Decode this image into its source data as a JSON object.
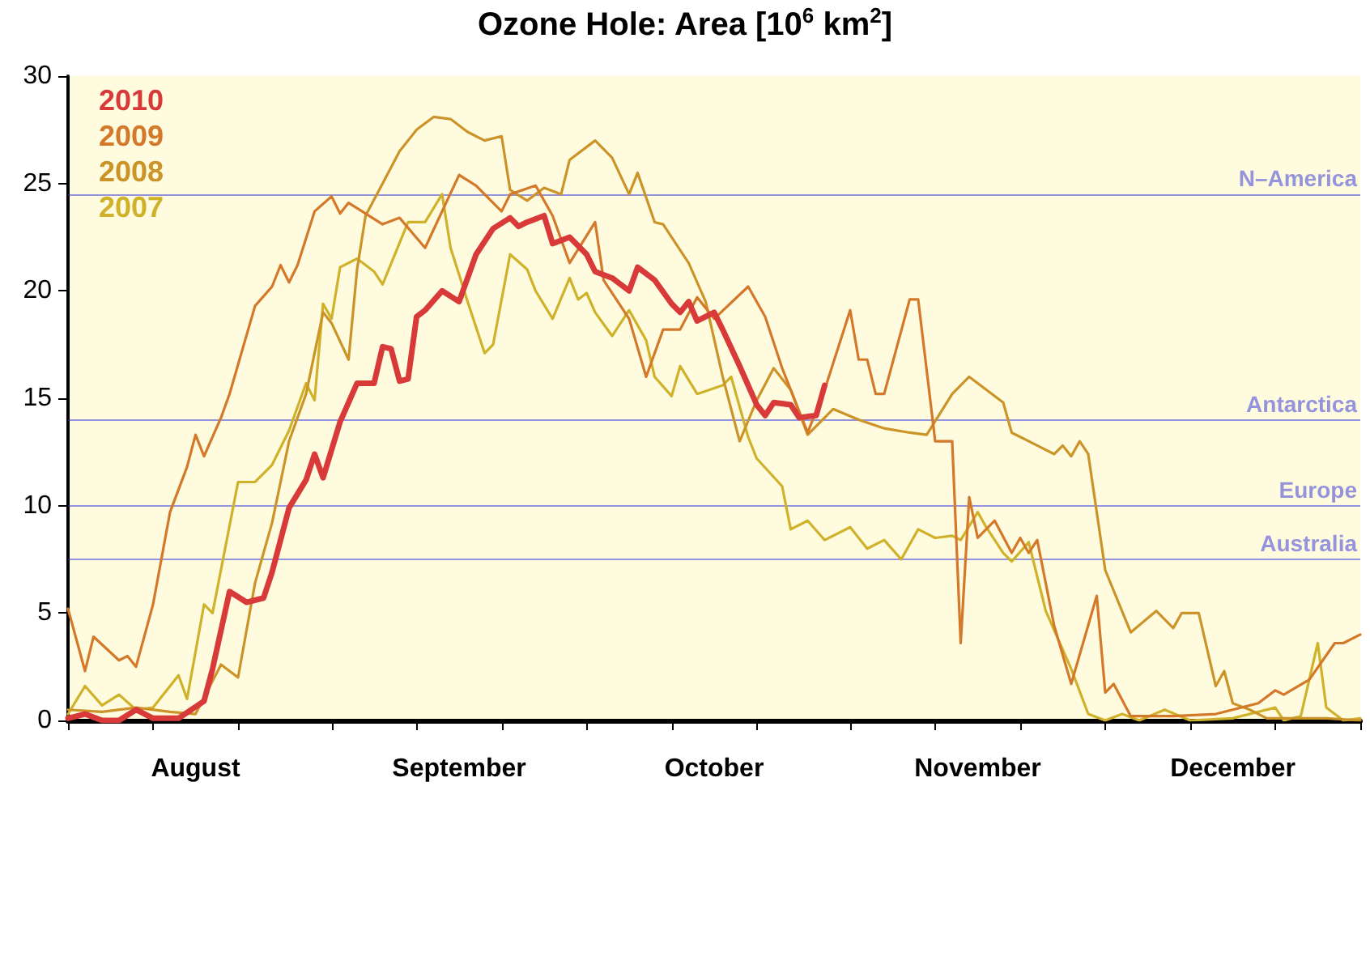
{
  "chart_data": {
    "type": "line",
    "title": "Ozone Hole: Area [10$^{6}$ km$^{2}$]",
    "xlim": [
      "--08-01",
      "--12-31"
    ],
    "xticks": [
      {
        "value": "--08-01",
        "label": null
      },
      {
        "value": "--08-11",
        "label": null
      },
      {
        "value": "--08-16",
        "label": "August"
      },
      {
        "value": "--08-21",
        "label": null
      },
      {
        "value": "--09-01",
        "label": null
      },
      {
        "value": "--09-11",
        "label": null
      },
      {
        "value": "--09-16",
        "label": "September"
      },
      {
        "value": "--09-21",
        "label": null
      },
      {
        "value": "--10-01",
        "label": null
      },
      {
        "value": "--10-11",
        "label": null
      },
      {
        "value": "--10-16",
        "label": "October"
      },
      {
        "value": "--10-21",
        "label": null
      },
      {
        "value": "--11-01",
        "label": null
      },
      {
        "value": "--11-11",
        "label": null
      },
      {
        "value": "--11-16",
        "label": "November"
      },
      {
        "value": "--11-21",
        "label": null
      },
      {
        "value": "--12-01",
        "label": null
      },
      {
        "value": "--12-11",
        "label": null
      },
      {
        "value": "--12-16",
        "label": "December"
      },
      {
        "value": "--12-21",
        "label": null
      },
      {
        "value": "--12-31",
        "label": null
      }
    ],
    "ylim": [
      0,
      30
    ],
    "yticks": [
      0,
      5,
      10,
      15,
      20,
      25,
      30
    ],
    "grid": false,
    "legend": "top left",
    "marker": "none",
    "line_style": "solid",
    "ref_lines": [
      {
        "axis": "y",
        "value": 24.5,
        "label": "N–America",
        "color": "#2b2bd9"
      },
      {
        "axis": "y",
        "value": 14,
        "label": "Antarctica",
        "color": "#2b2bd9"
      },
      {
        "axis": "y",
        "value": 10,
        "label": "Europe",
        "color": "#2b2bd9"
      },
      {
        "axis": "y",
        "value": 7.5,
        "label": "Australia",
        "color": "#2b2bd9"
      }
    ],
    "series": [
      {
        "name": "2010",
        "color": "#d83a3a",
        "x": [
          "--08-01",
          "--08-03",
          "--08-05",
          "--08-07",
          "--08-09",
          "--08-11",
          "--08-14",
          "--08-17",
          "--08-18",
          "--08-20",
          "--08-22",
          "--08-24",
          "--08-25",
          "--08-27",
          "--08-29",
          "--08-30",
          "--08-31",
          "--09-02",
          "--09-04",
          "--09-06",
          "--09-07",
          "--09-08",
          "--09-09",
          "--09-10",
          "--09-11",
          "--09-12",
          "--09-14",
          "--09-16",
          "--09-18",
          "--09-20",
          "--09-22",
          "--09-23",
          "--09-24",
          "--09-26",
          "--09-27",
          "--09-29",
          "--10-01",
          "--10-02",
          "--10-04",
          "--10-06",
          "--10-07",
          "--10-09",
          "--10-11",
          "--10-12",
          "--10-13",
          "--10-14",
          "--10-16",
          "--10-17",
          "--10-19",
          "--10-21",
          "--10-22",
          "--10-23",
          "--10-25",
          "--10-26",
          "--10-28",
          "--10-29"
        ],
        "values": [
          0.1,
          0.3,
          0,
          0,
          0.5,
          0.1,
          0.1,
          0.9,
          2.4,
          6.0,
          5.5,
          5.7,
          6.9,
          9.9,
          11.2,
          12.4,
          11.3,
          13.9,
          15.7,
          15.7,
          17.4,
          17.3,
          15.8,
          15.9,
          18.8,
          19.1,
          20.0,
          19.5,
          21.7,
          22.9,
          23.4,
          23.0,
          23.2,
          23.5,
          22.2,
          22.5,
          21.7,
          20.9,
          20.6,
          20.0,
          21.1,
          20.5,
          19.4,
          19.0,
          19.5,
          18.6,
          19.0,
          18.2,
          16.5,
          14.7,
          14.2,
          14.8,
          14.7,
          14.1,
          14.2,
          15.6
        ]
      },
      {
        "name": "2009",
        "color": "#d4782a",
        "x": [
          "--08-01",
          "--08-03",
          "--08-04",
          "--08-07",
          "--08-08",
          "--08-09",
          "--08-11",
          "--08-13",
          "--08-15",
          "--08-16",
          "--08-17",
          "--08-19",
          "--08-20",
          "--08-23",
          "--08-25",
          "--08-26",
          "--08-27",
          "--08-28",
          "--08-30",
          "--09-01",
          "--09-02",
          "--09-03",
          "--09-07",
          "--09-09",
          "--09-12",
          "--09-16",
          "--09-18",
          "--09-21",
          "--09-22",
          "--09-25",
          "--09-27",
          "--09-29",
          "--10-02",
          "--10-03",
          "--10-06",
          "--10-08",
          "--10-10",
          "--10-12",
          "--10-14",
          "--10-16",
          "--10-20",
          "--10-22",
          "--10-24",
          "--10-27",
          "--10-29",
          "--11-01",
          "--11-02",
          "--11-03",
          "--11-04",
          "--11-05",
          "--11-08",
          "--11-09",
          "--11-11",
          "--11-13",
          "--11-14",
          "--11-15",
          "--11-16",
          "--11-18",
          "--11-20",
          "--11-21",
          "--11-22",
          "--11-23",
          "--11-25",
          "--11-27",
          "--11-30",
          "--12-01",
          "--12-02",
          "--12-04",
          "--12-09",
          "--12-14",
          "--12-19",
          "--12-21",
          "--12-22",
          "--12-25",
          "--12-28",
          "--12-29",
          "--12-31"
        ],
        "values": [
          5.2,
          2.3,
          3.9,
          2.8,
          3.0,
          2.5,
          5.4,
          9.7,
          11.8,
          13.3,
          12.3,
          14.1,
          15.2,
          19.3,
          20.2,
          21.2,
          20.4,
          21.2,
          23.7,
          24.4,
          23.6,
          24.1,
          23.1,
          23.4,
          22.0,
          25.4,
          24.9,
          23.7,
          24.5,
          24.9,
          23.5,
          21.3,
          23.2,
          20.5,
          18.7,
          16.0,
          18.2,
          18.2,
          19.7,
          18.7,
          20.2,
          18.8,
          16.4,
          13.4,
          15.4,
          19.1,
          16.8,
          16.8,
          15.2,
          15.2,
          19.6,
          19.6,
          13.0,
          13.0,
          3.6,
          10.4,
          8.5,
          9.3,
          7.8,
          8.5,
          7.8,
          8.4,
          4.4,
          1.7,
          5.8,
          1.3,
          1.7,
          0.2,
          0.2,
          0.3,
          0.8,
          1.4,
          1.2,
          1.9,
          3.6,
          3.6,
          4.0
        ]
      },
      {
        "name": "2008",
        "color": "#cc9428",
        "x": [
          "--08-01",
          "--08-05",
          "--08-09",
          "--08-13",
          "--08-16",
          "--08-19",
          "--08-21",
          "--08-23",
          "--08-25",
          "--08-27",
          "--08-29",
          "--08-31",
          "--09-01",
          "--09-03",
          "--09-04",
          "--09-05",
          "--09-07",
          "--09-09",
          "--09-11",
          "--09-13",
          "--09-15",
          "--09-17",
          "--09-19",
          "--09-21",
          "--09-22",
          "--09-24",
          "--09-26",
          "--09-28",
          "--09-29",
          "--10-02",
          "--10-04",
          "--10-06",
          "--10-07",
          "--10-09",
          "--10-10",
          "--10-13",
          "--10-15",
          "--10-17",
          "--10-19",
          "--10-21",
          "--10-23",
          "--10-25",
          "--10-27",
          "--10-30",
          "--11-02",
          "--11-05",
          "--11-08",
          "--11-10",
          "--11-13",
          "--11-15",
          "--11-19",
          "--11-20",
          "--11-23",
          "--11-25",
          "--11-26",
          "--11-27",
          "--11-28",
          "--11-29",
          "--12-01",
          "--12-04",
          "--12-07",
          "--12-09",
          "--12-10",
          "--12-12",
          "--12-14",
          "--12-15",
          "--12-16",
          "--12-18",
          "--12-20",
          "--12-24",
          "--12-27",
          "--12-31"
        ],
        "values": [
          0.5,
          0.4,
          0.6,
          0.4,
          0.3,
          2.6,
          2.0,
          6.4,
          9.2,
          13.0,
          15.2,
          19.0,
          18.5,
          16.8,
          21.0,
          23.5,
          25.0,
          26.5,
          27.5,
          28.1,
          28.0,
          27.4,
          27.0,
          27.2,
          24.7,
          24.2,
          24.8,
          24.5,
          26.1,
          27.0,
          26.2,
          24.5,
          25.5,
          23.2,
          23.1,
          21.3,
          19.5,
          16.0,
          13.0,
          14.9,
          16.4,
          15.4,
          13.3,
          14.5,
          14.0,
          13.6,
          13.4,
          13.3,
          15.2,
          16.0,
          14.8,
          13.4,
          12.8,
          12.4,
          12.8,
          12.3,
          13.0,
          12.4,
          7.0,
          4.1,
          5.1,
          4.3,
          5.0,
          5.0,
          1.6,
          2.3,
          0.8,
          0.5,
          0.1,
          0.1,
          0.1,
          0
        ]
      },
      {
        "name": "2007",
        "color": "#cfb22a",
        "x": [
          "--08-01",
          "--08-03",
          "--08-05",
          "--08-07",
          "--08-09",
          "--08-11",
          "--08-14",
          "--08-15",
          "--08-17",
          "--08-18",
          "--08-21",
          "--08-23",
          "--08-25",
          "--08-27",
          "--08-29",
          "--08-30",
          "--08-31",
          "--09-01",
          "--09-02",
          "--09-04",
          "--09-06",
          "--09-07",
          "--09-10",
          "--09-12",
          "--09-14",
          "--09-15",
          "--09-17",
          "--09-19",
          "--09-20",
          "--09-22",
          "--09-24",
          "--09-25",
          "--09-27",
          "--09-29",
          "--09-30",
          "--10-01",
          "--10-02",
          "--10-04",
          "--10-06",
          "--10-08",
          "--10-09",
          "--10-11",
          "--10-12",
          "--10-14",
          "--10-17",
          "--10-18",
          "--10-20",
          "--10-21",
          "--10-24",
          "--10-25",
          "--10-27",
          "--10-29",
          "--11-01",
          "--11-03",
          "--11-05",
          "--11-07",
          "--11-09",
          "--11-11",
          "--11-13",
          "--11-14",
          "--11-16",
          "--11-17",
          "--11-19",
          "--11-20",
          "--11-22",
          "--11-24",
          "--11-27",
          "--11-29",
          "--12-01",
          "--12-03",
          "--12-05",
          "--12-08",
          "--12-11",
          "--12-16",
          "--12-21",
          "--12-22",
          "--12-24",
          "--12-26",
          "--12-27",
          "--12-29",
          "--12-31"
        ],
        "values": [
          0.3,
          1.6,
          0.7,
          1.2,
          0.5,
          0.6,
          2.1,
          1.0,
          5.4,
          5.0,
          11.1,
          11.1,
          11.9,
          13.5,
          15.7,
          14.9,
          19.4,
          18.7,
          21.1,
          21.5,
          20.9,
          20.3,
          23.2,
          23.2,
          24.5,
          22.0,
          19.5,
          17.1,
          17.5,
          21.7,
          21.0,
          20.0,
          18.7,
          20.6,
          19.6,
          19.9,
          19.0,
          17.9,
          19.1,
          17.7,
          16.0,
          15.1,
          16.5,
          15.2,
          15.6,
          16.0,
          13.2,
          12.2,
          10.9,
          8.9,
          9.3,
          8.4,
          9.0,
          8.0,
          8.4,
          7.5,
          8.9,
          8.5,
          8.6,
          8.4,
          9.7,
          9.0,
          7.8,
          7.4,
          8.3,
          5.1,
          2.4,
          0.3,
          0,
          0.3,
          0,
          0.5,
          0,
          0.1,
          0.6,
          0,
          0.2,
          3.6,
          0.6,
          0,
          0.1
        ]
      }
    ]
  }
}
